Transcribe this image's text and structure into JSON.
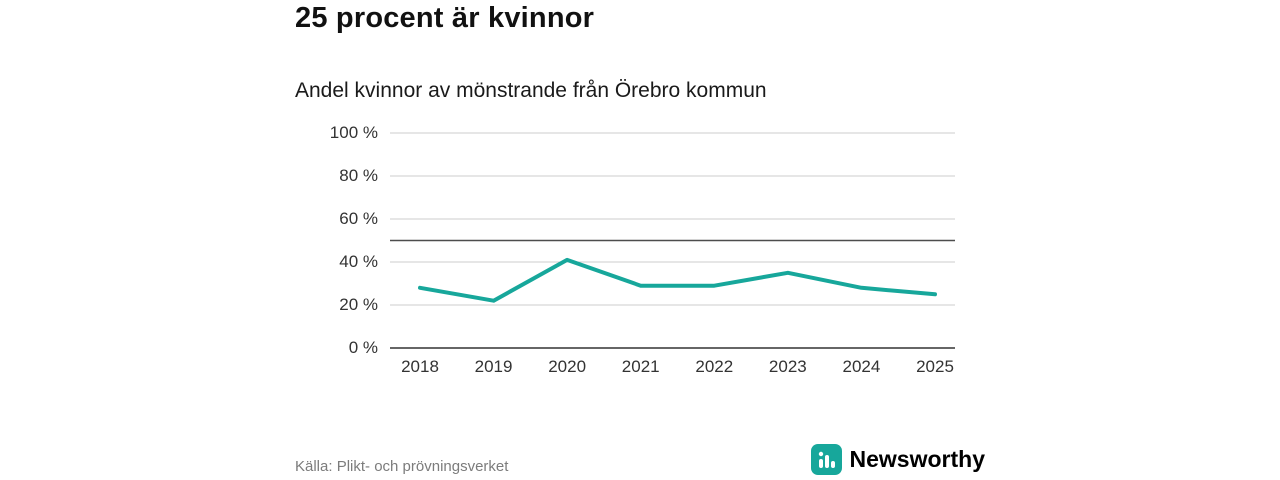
{
  "header": {
    "title": "25 procent är kvinnor",
    "subtitle": "Andel kvinnor av mönstrande från Örebro kommun"
  },
  "footer": {
    "source": "Källa: Plikt- och prövningsverket",
    "brand": "Newsworthy"
  },
  "chart_data": {
    "type": "line",
    "title": "25 procent är kvinnor",
    "subtitle": "Andel kvinnor av mönstrande från Örebro kommun",
    "categories": [
      "2018",
      "2019",
      "2020",
      "2021",
      "2022",
      "2023",
      "2024",
      "2025"
    ],
    "values": [
      28,
      22,
      41,
      29,
      29,
      35,
      28,
      25
    ],
    "xlabel": "",
    "ylabel": "",
    "ylim": [
      0,
      100
    ],
    "ytick_values": [
      100,
      80,
      60,
      40,
      20,
      0
    ],
    "ytick_labels": [
      "100 %",
      "80 %",
      "60 %",
      "40 %",
      "20 %",
      "0 %"
    ],
    "reference_line": 50,
    "grid": true,
    "legend": "none",
    "colors": {
      "line": "#17a79b",
      "grid": "#cccccc",
      "axis": "#333333",
      "reference": "#4d4d4d",
      "brand_teal": "#18948c"
    }
  }
}
